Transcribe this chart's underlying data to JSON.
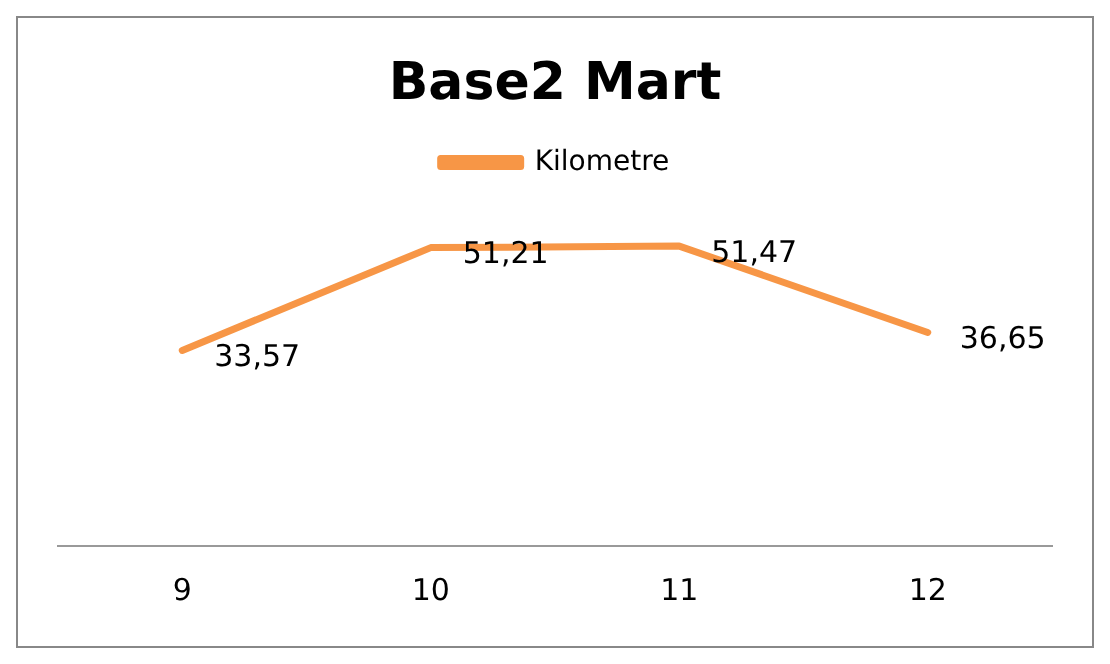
{
  "chart_data": {
    "type": "line",
    "title": "Base2 Mart",
    "categories": [
      "9",
      "10",
      "11",
      "12"
    ],
    "series": [
      {
        "name": "Kilometre",
        "color": "#f79646",
        "values": [
          33.57,
          51.21,
          51.47,
          36.65
        ],
        "value_labels": [
          "33,57",
          "51,21",
          "51,47",
          "36,65"
        ]
      }
    ],
    "legend": "top",
    "grid": false,
    "marker": "none"
  }
}
